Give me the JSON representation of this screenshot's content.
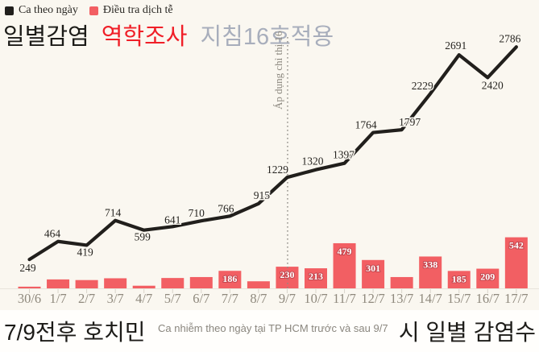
{
  "legend": {
    "series1_label": "Ca theo ngày",
    "series2_label": "Điều tra dịch tễ"
  },
  "titles": {
    "korean_black": "일별감염",
    "korean_red": "역학조사",
    "korean_gray": "지침16호적용"
  },
  "annotation": {
    "vertical_line_label": "Áp dụng chỉ thị 16",
    "at_category": "9/7"
  },
  "footer": {
    "left": "7/9전후 호치민",
    "center": "Ca nhiễm theo ngày tại TP HCM trước và sau 9/7",
    "right": "시 일별 감염수"
  },
  "colors": {
    "background": "#faf7f0",
    "footer_background": "#fffefc",
    "line": "#211f1c",
    "bar": "#f25f63",
    "red_text": "#f01f28",
    "gray_title": "#a8aebc",
    "axis_text": "#8f897d"
  },
  "chart_data": {
    "type": "line+bar",
    "categories": [
      "30/6",
      "1/7",
      "2/7",
      "3/7",
      "4/7",
      "5/7",
      "6/7",
      "7/7",
      "8/7",
      "9/7",
      "10/7",
      "11/7",
      "12/7",
      "13/7",
      "14/7",
      "15/7",
      "16/7",
      "17/7"
    ],
    "series": [
      {
        "name": "Ca theo ngày",
        "type": "line",
        "color": "#211f1c",
        "values": [
          249,
          464,
          419,
          714,
          599,
          641,
          710,
          766,
          915,
          1229,
          1320,
          1397,
          1764,
          1797,
          2229,
          2691,
          2420,
          2786
        ],
        "labels_visible": [
          true,
          true,
          true,
          true,
          true,
          true,
          true,
          true,
          true,
          true,
          true,
          true,
          true,
          true,
          true,
          true,
          true,
          true
        ]
      },
      {
        "name": "Điều tra dịch tễ",
        "type": "bar",
        "color": "#f25f63",
        "values": [
          18,
          95,
          88,
          107,
          28,
          110,
          120,
          186,
          75,
          230,
          213,
          479,
          301,
          120,
          338,
          185,
          209,
          542
        ],
        "labels_visible": [
          false,
          false,
          false,
          false,
          false,
          false,
          false,
          true,
          false,
          true,
          true,
          true,
          true,
          false,
          true,
          true,
          true,
          true
        ]
      }
    ],
    "ylim": [
      0,
      2900
    ],
    "grid": false,
    "legend_position": "top-left"
  }
}
